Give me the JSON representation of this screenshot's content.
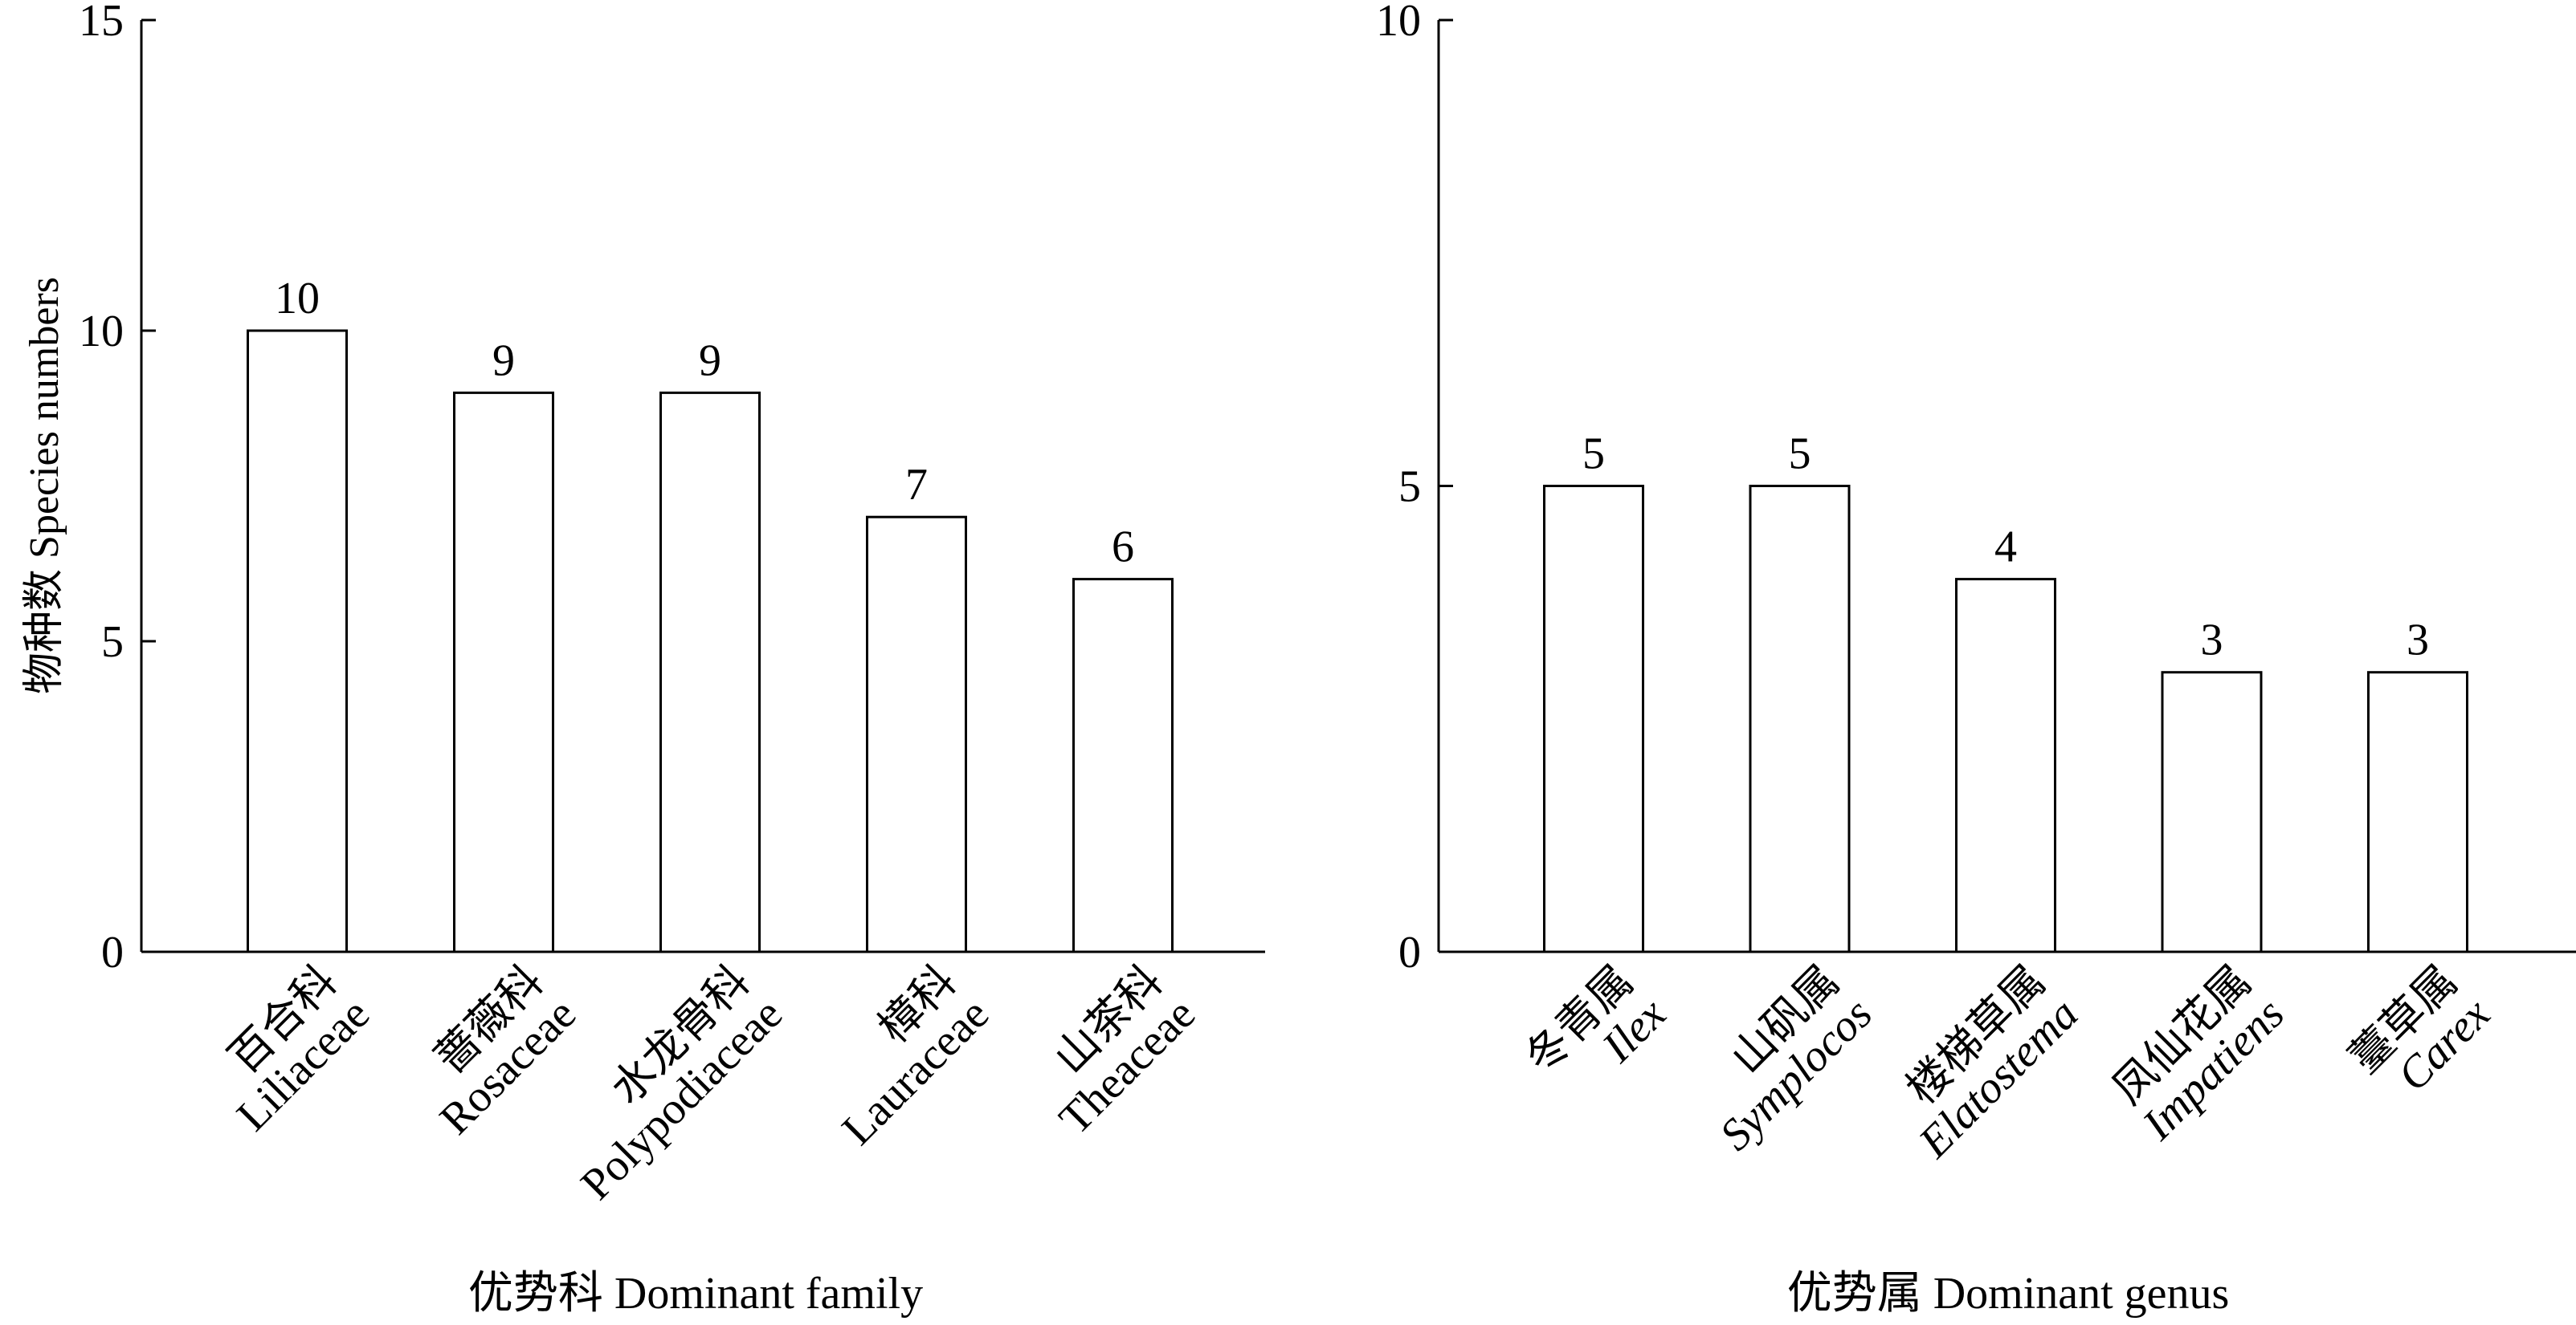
{
  "chart_data": [
    {
      "type": "bar",
      "title": "",
      "xlabel": "优势科 Dominant family",
      "ylabel": "物种数 Species numbers",
      "ylim": [
        0,
        15
      ],
      "yticks": [
        0,
        5,
        10,
        15
      ],
      "categories": [
        {
          "cn": "百合科",
          "latin": "Liliaceae"
        },
        {
          "cn": "蔷薇科",
          "latin": "Rosaceae"
        },
        {
          "cn": "水龙骨科",
          "latin": "Polypodiaceae"
        },
        {
          "cn": "樟科",
          "latin": "Lauraceae"
        },
        {
          "cn": "山茶科",
          "latin": "Theaceae"
        }
      ],
      "values": [
        10,
        9,
        9,
        7,
        6
      ],
      "latin_italic": false
    },
    {
      "type": "bar",
      "title": "",
      "xlabel": "优势属 Dominant genus",
      "ylabel": "",
      "ylim": [
        0,
        10
      ],
      "yticks": [
        0,
        5,
        10
      ],
      "categories": [
        {
          "cn": "冬青属",
          "latin": "Ilex"
        },
        {
          "cn": "山矾属",
          "latin": "Symplocos"
        },
        {
          "cn": "楼梯草属",
          "latin": "Elatostema"
        },
        {
          "cn": "凤仙花属",
          "latin": "Impatiens"
        },
        {
          "cn": "薹草属",
          "latin": "Carex"
        }
      ],
      "values": [
        5,
        5,
        4,
        3,
        3
      ],
      "latin_italic": true
    }
  ]
}
